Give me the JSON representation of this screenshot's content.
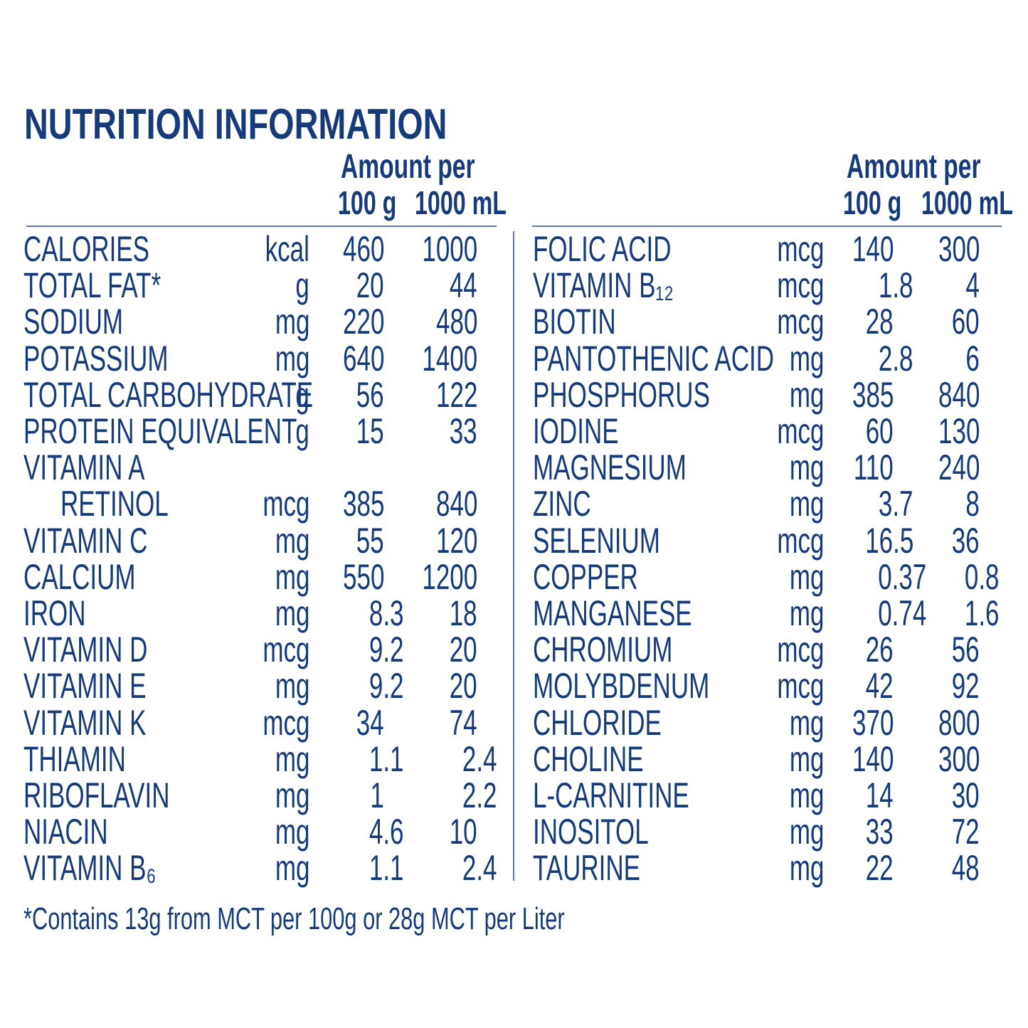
{
  "title": "NUTRITION INFORMATION",
  "left": {
    "header": {
      "amount": "Amount per",
      "col1": "100 g",
      "col2": "1000 mL"
    },
    "rows": [
      [
        "CALORIES",
        "kcal",
        "460",
        "1000"
      ],
      [
        "TOTAL FAT*",
        "g",
        "20",
        "44"
      ],
      [
        "SODIUM",
        "mg",
        "220",
        "480"
      ],
      [
        "POTASSIUM",
        "mg",
        "640",
        "1400"
      ],
      [
        "TOTAL CARBOHYDRATE",
        "g",
        "56",
        "122"
      ],
      [
        "PROTEIN EQUIVALENT",
        "g",
        "15",
        "33"
      ],
      [
        "VITAMIN A"
      ],
      [
        "RETINOL",
        "mcg",
        "385",
        "840"
      ],
      [
        "VITAMIN C",
        "mg",
        "55",
        "120"
      ],
      [
        "CALCIUM",
        "mg",
        "550",
        "1200"
      ],
      [
        "IRON",
        "mg",
        "8.3",
        "18"
      ],
      [
        "VITAMIN D",
        "mcg",
        "9.2",
        "20"
      ],
      [
        "VITAMIN E",
        "mg",
        "9.2",
        "20"
      ],
      [
        "VITAMIN K",
        "mcg",
        "34",
        "74"
      ],
      [
        "THIAMIN",
        "mg",
        "1.1",
        "2.4"
      ],
      [
        "RIBOFLAVIN",
        "mg",
        "1",
        "2.2"
      ],
      [
        "NIACIN",
        "mg",
        "4.6",
        "10"
      ],
      [
        "VITAMIN B₆",
        "mg",
        "1.1",
        "2.4"
      ]
    ]
  },
  "right": {
    "header": {
      "amount": "Amount per",
      "col1": "100 g",
      "col2": "1000 mL"
    },
    "rows": [
      [
        "FOLIC ACID",
        "mcg",
        "140",
        "300"
      ],
      [
        "VITAMIN B₁₂",
        "mcg",
        "1.8",
        "4"
      ],
      [
        "BIOTIN",
        "mcg",
        "28",
        "60"
      ],
      [
        "PANTOTHENIC ACID",
        "mg",
        "2.8",
        "6"
      ],
      [
        "PHOSPHORUS",
        "mg",
        "385",
        "840"
      ],
      [
        "IODINE",
        "mcg",
        "60",
        "130"
      ],
      [
        "MAGNESIUM",
        "mg",
        "110",
        "240"
      ],
      [
        "ZINC",
        "mg",
        "3.7",
        "8"
      ],
      [
        "SELENIUM",
        "mcg",
        "16.5",
        "36"
      ],
      [
        "COPPER",
        "mg",
        "0.37",
        "0.8"
      ],
      [
        "MANGANESE",
        "mg",
        "0.74",
        "1.6"
      ],
      [
        "CHROMIUM",
        "mcg",
        "26",
        "56"
      ],
      [
        "MOLYBDENUM",
        "mcg",
        "42",
        "92"
      ],
      [
        "CHLORIDE",
        "mg",
        "370",
        "800"
      ],
      [
        "CHOLINE",
        "mg",
        "140",
        "300"
      ],
      [
        "L-CARNITINE",
        "mg",
        "14",
        "30"
      ],
      [
        "INOSITOL",
        "mg",
        "33",
        "72"
      ],
      [
        "TAURINE",
        "mg",
        "22",
        "48"
      ]
    ]
  },
  "footnote": "*Contains 13g from MCT per 100g or 28g MCT per Liter"
}
